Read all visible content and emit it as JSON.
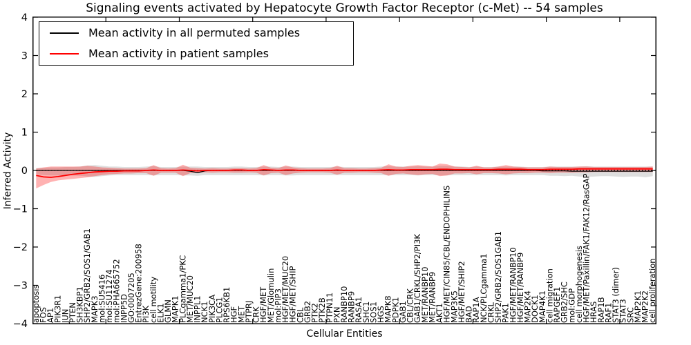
{
  "figure": {
    "title": "Signaling events activated by Hepatocyte Growth Factor Receptor (c-Met) -- 54 samples",
    "xlabel": "Cellular Entities",
    "ylabel": "Inferred Activity"
  },
  "legend": {
    "items": [
      {
        "label": "Mean activity in all permuted samples",
        "color": "#000000"
      },
      {
        "label": "Mean activity in patient samples",
        "color": "#ff0000"
      }
    ]
  },
  "chart_data": {
    "type": "line",
    "title": "Signaling events activated by Hepatocyte Growth Factor Receptor (c-Met) -- 54 samples",
    "xlabel": "Cellular Entities",
    "ylabel": "Inferred Activity",
    "ylim": [
      -4,
      4
    ],
    "grid": false,
    "legend_position": "upper left",
    "zero_line_style": "dotted",
    "ytick_values": [
      4,
      3,
      2,
      1,
      0,
      -1,
      -2,
      -3,
      -4
    ],
    "ytick_labels": [
      "4",
      "3",
      "2",
      "1",
      "0",
      "−1",
      "−2",
      "−3",
      "−4"
    ],
    "x_major_ticks": [
      10,
      20,
      30,
      40,
      50,
      60,
      70,
      80
    ],
    "categories": [
      "apoptosis",
      "FOS",
      "AP1",
      "PIK3R1",
      "JUN",
      "PTEN",
      "SH3KBP1",
      "SHP2/GRB2/SOS1/GAB1",
      "MAPK3",
      "mol:SU5416",
      "mol:SU11274",
      "mol:PHA665752",
      "INPP5D",
      "GO:0007205",
      "EntrezGene:200958",
      "PI3K",
      "cell motility",
      "ELK1",
      "GLMN",
      "MAPK1",
      "PLCgamma1/PKC",
      "MET/MUC20",
      "INPPL1",
      "NCK1",
      "PIK3CA",
      "PLCG1",
      "RPS6KB1",
      "HGF",
      "MET",
      "PTPRJ",
      "CRK",
      "HGF/MET",
      "MET/Glomulin",
      "mol:PIP3",
      "HGF/MET/MUC20",
      "HGF/MET/SHIP",
      "CBL",
      "GRB2",
      "PTK2",
      "PTK2B",
      "PTPN11",
      "PXN",
      "RANBP10",
      "RANBP9",
      "RASA1",
      "SHC1",
      "SOS1",
      "HGS",
      "MAPK8",
      "PDPK1",
      "GAB1",
      "CBL/CRK",
      "GAB1/CRKL/SHP2/PI3K",
      "MET/RANBP10",
      "MET/RANBP9",
      "AKT1",
      "HGF/MET/CIN85/CBL/ENDOPHILINS",
      "MAP3K5",
      "HGF/MET/SHIP2",
      "BAD",
      "RAP1A",
      "NCK/PLCgamma1",
      "CRKL",
      "SHP2/GRB2/SOS1GAB1",
      "PAK1",
      "HGF/MET/RANBP10",
      "HGF/MET/RANBP9",
      "MAP2K4",
      "DOCK1",
      "MAP4K1",
      "cell migration",
      "RAPGEF1",
      "GRB2/SHC",
      "mol:GDP",
      "cell morphogenesis",
      "HGF/MET/Paxillin/FAK1/FAK12/RasGAP",
      "HRAS",
      "RAP1B",
      "RAF1",
      "STAT3 (dimer)",
      "STAT3",
      "SRC",
      "MAP2K1",
      "MAP2K2",
      "cell proliferation"
    ],
    "series": [
      {
        "name": "Mean activity in all permuted samples",
        "color": "#000000",
        "values": [
          0,
          0,
          0,
          0,
          0,
          0,
          0,
          0,
          0,
          0,
          0,
          0,
          0,
          0,
          0,
          0,
          0,
          0,
          0,
          0,
          0,
          -0.02,
          -0.06,
          -0.01,
          0,
          0,
          0,
          0,
          0,
          0,
          0,
          0,
          0,
          0,
          0,
          0,
          0,
          0,
          0,
          0,
          0,
          0,
          0,
          0,
          0,
          0,
          0,
          0,
          0,
          0,
          0,
          0,
          0,
          0,
          0,
          0,
          0,
          0,
          0,
          0,
          0,
          0,
          0,
          0,
          0,
          0,
          0,
          0,
          0,
          -0.01,
          -0.01,
          -0.01,
          -0.01,
          -0.02,
          -0.02,
          -0.02,
          -0.02,
          -0.02,
          -0.02,
          -0.02,
          -0.02,
          -0.02,
          -0.02,
          -0.02,
          -0.02
        ]
      },
      {
        "name": "Mean activity in patient samples",
        "color": "#ff0000",
        "values": [
          -0.13,
          -0.17,
          -0.18,
          -0.16,
          -0.13,
          -0.1,
          -0.08,
          -0.06,
          -0.04,
          -0.03,
          -0.02,
          -0.02,
          -0.01,
          -0.01,
          -0.01,
          0.0,
          0.01,
          0.0,
          0.0,
          0.0,
          0.01,
          0.0,
          -0.01,
          0.0,
          0.0,
          0.0,
          0.0,
          0.01,
          0.01,
          0.0,
          0.0,
          0.02,
          0.01,
          0.0,
          0.01,
          0.01,
          0.0,
          0.0,
          0.0,
          0.0,
          0.0,
          0.01,
          0.0,
          0.0,
          0.0,
          0.0,
          0.0,
          0.01,
          0.02,
          0.01,
          0.01,
          0.02,
          0.02,
          0.02,
          0.02,
          0.03,
          0.03,
          0.02,
          0.02,
          0.02,
          0.02,
          0.02,
          0.02,
          0.03,
          0.03,
          0.03,
          0.03,
          0.02,
          0.02,
          0.02,
          0.03,
          0.03,
          0.03,
          0.03,
          0.04,
          0.04,
          0.04,
          0.04,
          0.04,
          0.04,
          0.04,
          0.04,
          0.04,
          0.04,
          0.04
        ]
      }
    ],
    "bands": [
      {
        "name": "permuted samples ± std",
        "color": "rgba(0,0,0,0.13)",
        "upper": [
          0.06,
          0.07,
          0.08,
          0.08,
          0.09,
          0.09,
          0.1,
          0.13,
          0.14,
          0.12,
          0.1,
          0.1,
          0.09,
          0.09,
          0.09,
          0.1,
          0.11,
          0.09,
          0.09,
          0.09,
          0.1,
          0.1,
          0.1,
          0.09,
          0.09,
          0.09,
          0.09,
          0.1,
          0.1,
          0.09,
          0.09,
          0.1,
          0.1,
          0.09,
          0.1,
          0.1,
          0.09,
          0.09,
          0.09,
          0.09,
          0.09,
          0.1,
          0.09,
          0.09,
          0.09,
          0.09,
          0.09,
          0.1,
          0.11,
          0.1,
          0.1,
          0.1,
          0.11,
          0.1,
          0.1,
          0.12,
          0.12,
          0.1,
          0.1,
          0.09,
          0.1,
          0.09,
          0.09,
          0.1,
          0.1,
          0.1,
          0.1,
          0.09,
          0.09,
          0.09,
          0.1,
          0.1,
          0.1,
          0.1,
          0.1,
          0.11,
          0.1,
          0.1,
          0.1,
          0.1,
          0.1,
          0.1,
          0.1,
          0.1,
          0.1
        ],
        "lower": [
          -0.1,
          -0.12,
          -0.13,
          -0.13,
          -0.13,
          -0.13,
          -0.14,
          -0.16,
          -0.17,
          -0.15,
          -0.13,
          -0.12,
          -0.12,
          -0.12,
          -0.12,
          -0.12,
          -0.13,
          -0.12,
          -0.12,
          -0.12,
          -0.13,
          -0.13,
          -0.14,
          -0.12,
          -0.12,
          -0.12,
          -0.12,
          -0.12,
          -0.12,
          -0.12,
          -0.12,
          -0.13,
          -0.12,
          -0.12,
          -0.13,
          -0.13,
          -0.12,
          -0.12,
          -0.12,
          -0.12,
          -0.12,
          -0.12,
          -0.12,
          -0.12,
          -0.12,
          -0.12,
          -0.12,
          -0.12,
          -0.13,
          -0.12,
          -0.12,
          -0.12,
          -0.13,
          -0.12,
          -0.12,
          -0.13,
          -0.13,
          -0.12,
          -0.12,
          -0.12,
          -0.12,
          -0.12,
          -0.12,
          -0.12,
          -0.13,
          -0.12,
          -0.12,
          -0.12,
          -0.12,
          -0.12,
          -0.14,
          -0.14,
          -0.15,
          -0.14,
          -0.16,
          -0.17,
          -0.16,
          -0.15,
          -0.15,
          -0.16,
          -0.17,
          -0.16,
          -0.16,
          -0.18,
          -0.15
        ]
      },
      {
        "name": "patient samples ± std",
        "color": "rgba(255,0,0,0.30)",
        "upper": [
          0.05,
          0.08,
          0.1,
          0.1,
          0.1,
          0.1,
          0.1,
          0.12,
          0.1,
          0.08,
          0.07,
          0.06,
          0.05,
          0.05,
          0.05,
          0.06,
          0.14,
          0.06,
          0.05,
          0.06,
          0.15,
          0.07,
          0.06,
          0.05,
          0.06,
          0.05,
          0.05,
          0.06,
          0.06,
          0.05,
          0.06,
          0.14,
          0.07,
          0.06,
          0.13,
          0.08,
          0.06,
          0.05,
          0.05,
          0.05,
          0.06,
          0.12,
          0.06,
          0.06,
          0.05,
          0.05,
          0.06,
          0.07,
          0.16,
          0.1,
          0.09,
          0.12,
          0.14,
          0.12,
          0.1,
          0.18,
          0.16,
          0.1,
          0.09,
          0.08,
          0.12,
          0.08,
          0.08,
          0.1,
          0.14,
          0.1,
          0.09,
          0.08,
          0.08,
          0.08,
          0.1,
          0.09,
          0.09,
          0.09,
          0.1,
          0.1,
          0.09,
          0.09,
          0.09,
          0.09,
          0.09,
          0.09,
          0.09,
          0.09,
          0.1
        ],
        "lower": [
          -0.47,
          -0.38,
          -0.3,
          -0.26,
          -0.24,
          -0.22,
          -0.2,
          -0.18,
          -0.15,
          -0.12,
          -0.1,
          -0.09,
          -0.08,
          -0.08,
          -0.07,
          -0.07,
          -0.14,
          -0.06,
          -0.06,
          -0.06,
          -0.15,
          -0.07,
          -0.06,
          -0.05,
          -0.06,
          -0.05,
          -0.05,
          -0.06,
          -0.06,
          -0.05,
          -0.06,
          -0.13,
          -0.07,
          -0.06,
          -0.12,
          -0.08,
          -0.06,
          -0.05,
          -0.05,
          -0.05,
          -0.06,
          -0.11,
          -0.06,
          -0.06,
          -0.05,
          -0.05,
          -0.06,
          -0.07,
          -0.14,
          -0.09,
          -0.08,
          -0.1,
          -0.12,
          -0.1,
          -0.09,
          -0.15,
          -0.13,
          -0.08,
          -0.08,
          -0.07,
          -0.1,
          -0.07,
          -0.07,
          -0.08,
          -0.1,
          -0.08,
          -0.07,
          -0.07,
          -0.06,
          -0.06,
          -0.07,
          -0.06,
          -0.06,
          -0.06,
          -0.05,
          -0.05,
          -0.04,
          -0.04,
          -0.04,
          -0.04,
          -0.04,
          -0.04,
          -0.04,
          -0.04,
          -0.04
        ]
      }
    ]
  }
}
